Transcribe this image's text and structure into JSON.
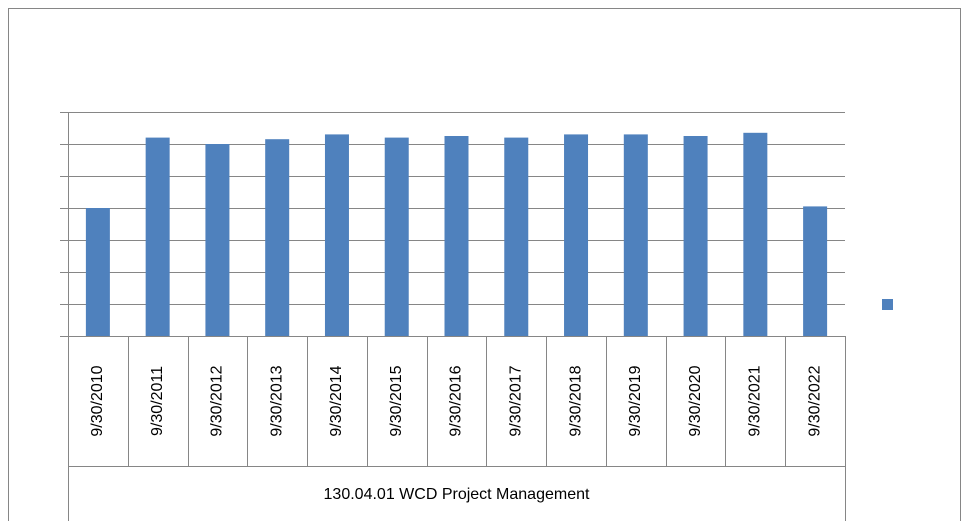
{
  "chart_data": {
    "type": "bar",
    "categories": [
      "9/30/2010",
      "9/30/2011",
      "9/30/2012",
      "9/30/2013",
      "9/30/2014",
      "9/30/2015",
      "9/30/2016",
      "9/30/2017",
      "9/30/2018",
      "9/30/2019",
      "9/30/2020",
      "9/30/2021",
      "9/30/2022"
    ],
    "category_group": "130.04.01 WCD Project Management",
    "values": [
      4.0,
      6.2,
      6.0,
      6.15,
      6.3,
      6.2,
      6.25,
      6.2,
      6.3,
      6.3,
      6.25,
      6.35,
      4.05
    ],
    "color": "#4f81bd",
    "ylim": [
      0,
      7
    ],
    "yticks": [
      0,
      1,
      2,
      3,
      4,
      5,
      6,
      7
    ],
    "grid": true,
    "legend": "right"
  }
}
